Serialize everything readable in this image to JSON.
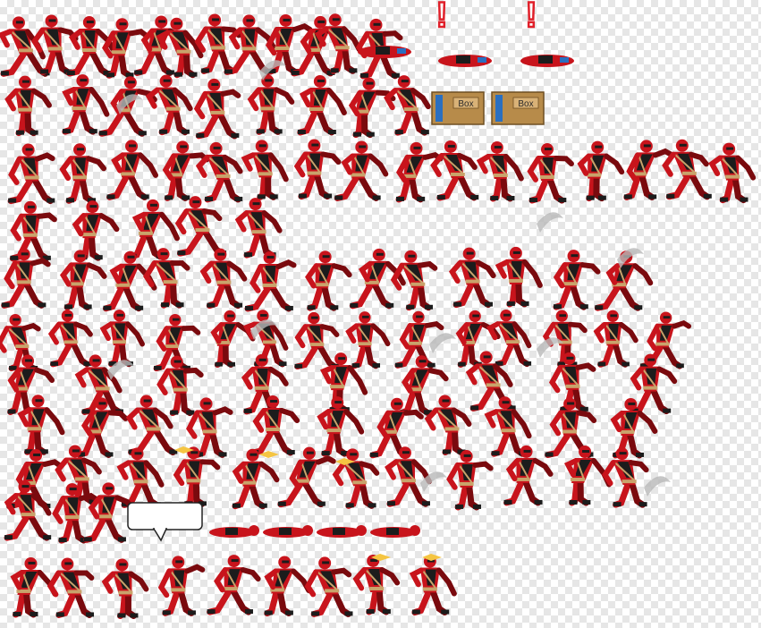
{
  "sheet": {
    "background": "checkerboard-transparency",
    "colors": {
      "suit_red": "#c8141c",
      "suit_dark_red": "#7a0a0e",
      "armor_black": "#1c1c1c",
      "strap_tan": "#c9a36b",
      "alert_red": "#e0202a",
      "box_brown": "#b78b4a",
      "box_blue": "#2a6fc0",
      "muzzle_flash": "#f5c542",
      "slash_grey": "#b8b8b8"
    },
    "props": {
      "box_label": "Box",
      "alert_mark": "!"
    },
    "speech_bubble": {
      "text": ""
    }
  }
}
